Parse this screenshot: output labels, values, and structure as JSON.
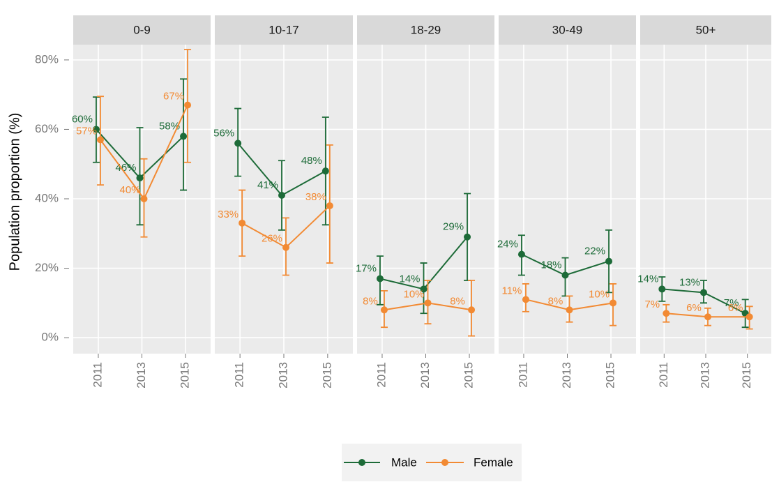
{
  "chart_data": {
    "type": "line",
    "y_label": "Population proportion (%)",
    "ylim": [
      -4.6,
      84.4
    ],
    "yticks": [
      {
        "value": 0,
        "label": "0%"
      },
      {
        "value": 20,
        "label": "20%"
      },
      {
        "value": 40,
        "label": "40%"
      },
      {
        "value": 60,
        "label": "60%"
      },
      {
        "value": 80,
        "label": "80%"
      }
    ],
    "x": [
      2011,
      2013,
      2015
    ],
    "xlim": [
      2009.85,
      2016.15
    ],
    "xticks": [
      2011,
      2013,
      2015
    ],
    "grid": true,
    "legend": "bottom",
    "series": [
      {
        "name": "Male",
        "color": "#1d6b38"
      },
      {
        "name": "Female",
        "color": "#f28a33"
      }
    ],
    "facets": [
      {
        "title": "0-9",
        "series": [
          {
            "values": [
              60,
              46,
              58
            ],
            "lower": [
              50.5,
              32.5,
              42.5
            ],
            "upper": [
              69.3,
              60.5,
              74.5
            ],
            "value_labels": [
              "60%",
              "46%",
              "58%"
            ]
          },
          {
            "values": [
              57,
              40,
              67
            ],
            "lower": [
              44,
              29,
              50.5
            ],
            "upper": [
              69.5,
              51.5,
              83
            ],
            "value_labels": [
              "57%",
              "40%",
              "67%"
            ]
          }
        ]
      },
      {
        "title": "10-17",
        "series": [
          {
            "values": [
              56,
              41,
              48
            ],
            "lower": [
              46.5,
              31,
              32.5
            ],
            "upper": [
              66,
              51,
              63.5
            ],
            "value_labels": [
              "56%",
              "41%",
              "48%"
            ]
          },
          {
            "values": [
              33,
              26,
              38
            ],
            "lower": [
              23.5,
              18,
              21.5
            ],
            "upper": [
              42.5,
              34.5,
              55.5
            ],
            "value_labels": [
              "33%",
              "26%",
              "38%"
            ]
          }
        ]
      },
      {
        "title": "18-29",
        "series": [
          {
            "values": [
              17,
              14,
              29
            ],
            "lower": [
              9.5,
              7,
              16.5
            ],
            "upper": [
              23.5,
              21.5,
              41.5
            ],
            "value_labels": [
              "17%",
              "14%",
              "29%"
            ]
          },
          {
            "values": [
              8,
              10,
              8
            ],
            "lower": [
              3,
              4,
              0.5
            ],
            "upper": [
              13.5,
              16.5,
              16.5
            ],
            "value_labels": [
              "8%",
              "10%",
              "8%"
            ]
          }
        ]
      },
      {
        "title": "30-49",
        "series": [
          {
            "values": [
              24,
              18,
              22
            ],
            "lower": [
              18,
              12,
              13
            ],
            "upper": [
              29.5,
              23,
              31
            ],
            "value_labels": [
              "24%",
              "18%",
              "22%"
            ]
          },
          {
            "values": [
              11,
              8,
              10
            ],
            "lower": [
              7.5,
              4.5,
              3.5
            ],
            "upper": [
              15.5,
              12,
              15.5
            ],
            "value_labels": [
              "11%",
              "8%",
              "10%"
            ]
          }
        ]
      },
      {
        "title": "50+",
        "series": [
          {
            "values": [
              14,
              13,
              7
            ],
            "lower": [
              10.5,
              10,
              3
            ],
            "upper": [
              17.5,
              16.5,
              11
            ],
            "value_labels": [
              "14%",
              "13%",
              "7%"
            ]
          },
          {
            "values": [
              7,
              6,
              6
            ],
            "lower": [
              4.5,
              3.5,
              2.5
            ],
            "upper": [
              9.5,
              8.5,
              9
            ],
            "value_labels": [
              "7%",
              "6%",
              "6%"
            ]
          }
        ]
      }
    ]
  }
}
